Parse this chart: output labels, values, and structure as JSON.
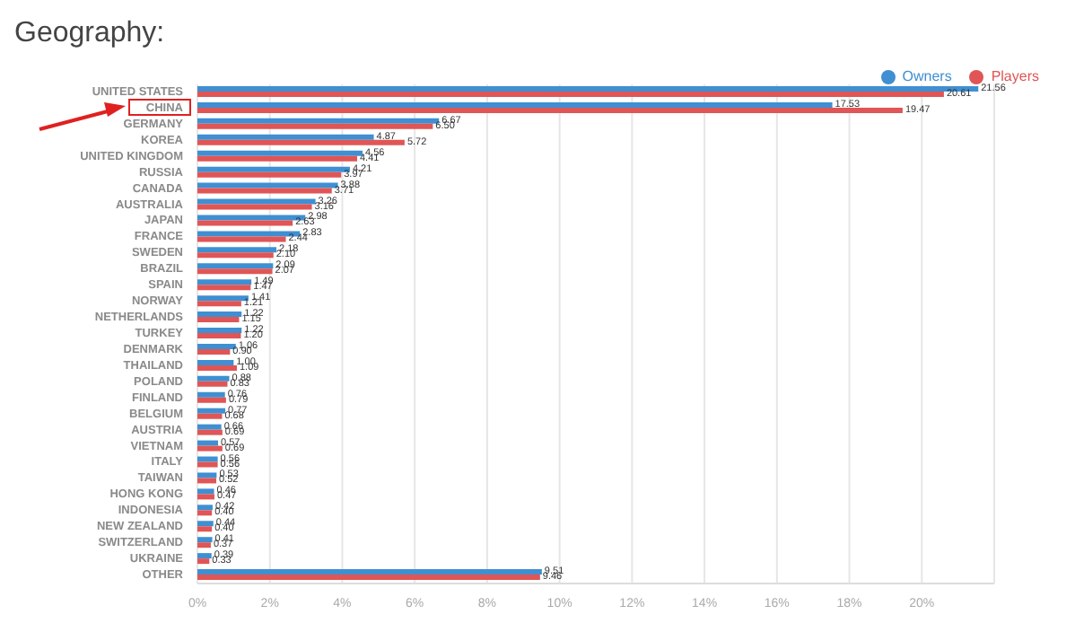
{
  "chart_data": {
    "type": "bar",
    "orientation": "horizontal",
    "title": "Geography:",
    "categories": [
      "UNITED STATES",
      "CHINA",
      "GERMANY",
      "KOREA",
      "UNITED KINGDOM",
      "RUSSIA",
      "CANADA",
      "AUSTRALIA",
      "JAPAN",
      "FRANCE",
      "SWEDEN",
      "BRAZIL",
      "SPAIN",
      "NORWAY",
      "NETHERLANDS",
      "TURKEY",
      "DENMARK",
      "THAILAND",
      "POLAND",
      "FINLAND",
      "BELGIUM",
      "AUSTRIA",
      "VIETNAM",
      "ITALY",
      "TAIWAN",
      "HONG KONG",
      "INDONESIA",
      "NEW ZEALAND",
      "SWITZERLAND",
      "UKRAINE",
      "OTHER"
    ],
    "series": [
      {
        "name": "Owners",
        "color": "#3f8fd2",
        "values": [
          21.56,
          17.53,
          6.67,
          4.87,
          4.56,
          4.21,
          3.88,
          3.26,
          2.98,
          2.83,
          2.18,
          2.09,
          1.49,
          1.41,
          1.22,
          1.22,
          1.06,
          1.0,
          0.88,
          0.76,
          0.77,
          0.66,
          0.57,
          0.56,
          0.53,
          0.46,
          0.42,
          0.44,
          0.41,
          0.39,
          9.51
        ],
        "value_labels": [
          "21.56",
          "17.53",
          "6.67",
          "4.87",
          "4.56",
          "4.21",
          "3.88",
          "3.26",
          "2.98",
          "2.83",
          "2.18",
          "2.09",
          "1.49",
          "1.41",
          "1.22",
          "1.22",
          "1.06",
          "1.00",
          "0.88",
          "0.76",
          "0.77",
          "0.66",
          "0.57",
          "0.56",
          "0.53",
          "0.46",
          "0.42",
          "0.44",
          "0.41",
          "0.39",
          "9.51"
        ]
      },
      {
        "name": "Players",
        "color": "#e05555",
        "values": [
          20.61,
          19.47,
          6.5,
          5.72,
          4.41,
          3.97,
          3.71,
          3.16,
          2.63,
          2.44,
          2.1,
          2.07,
          1.47,
          1.21,
          1.15,
          1.2,
          0.9,
          1.09,
          0.83,
          0.79,
          0.68,
          0.69,
          0.69,
          0.56,
          0.52,
          0.47,
          0.4,
          0.4,
          0.37,
          0.33,
          9.46
        ],
        "value_labels": [
          "20.61",
          "19.47",
          "6.50",
          "5.72",
          "4.41",
          "3.97",
          "3.71",
          "3.16",
          "2.63",
          "2.44",
          "2.10",
          "2.07",
          "1.47",
          "1.21",
          "1.15",
          "1.20",
          "0.90",
          "1.09",
          "0.83",
          "0.79",
          "0.68",
          "0.69",
          "0.69",
          "0.56",
          "0.52",
          "0.47",
          "0.40",
          "0.40",
          "0.37",
          "0.33",
          "9.46"
        ]
      }
    ],
    "xlim": [
      0,
      22
    ],
    "xticks": [
      {
        "value": 0,
        "label": "0%"
      },
      {
        "value": 2,
        "label": "2%"
      },
      {
        "value": 4,
        "label": "4%"
      },
      {
        "value": 6,
        "label": "6%"
      },
      {
        "value": 8,
        "label": "8%"
      },
      {
        "value": 10,
        "label": "10%"
      },
      {
        "value": 12,
        "label": "12%"
      },
      {
        "value": 14,
        "label": "14%"
      },
      {
        "value": 16,
        "label": "16%"
      },
      {
        "value": 18,
        "label": "18%"
      },
      {
        "value": 20,
        "label": "20%"
      }
    ],
    "grid": "x",
    "legend": "top right"
  }
}
